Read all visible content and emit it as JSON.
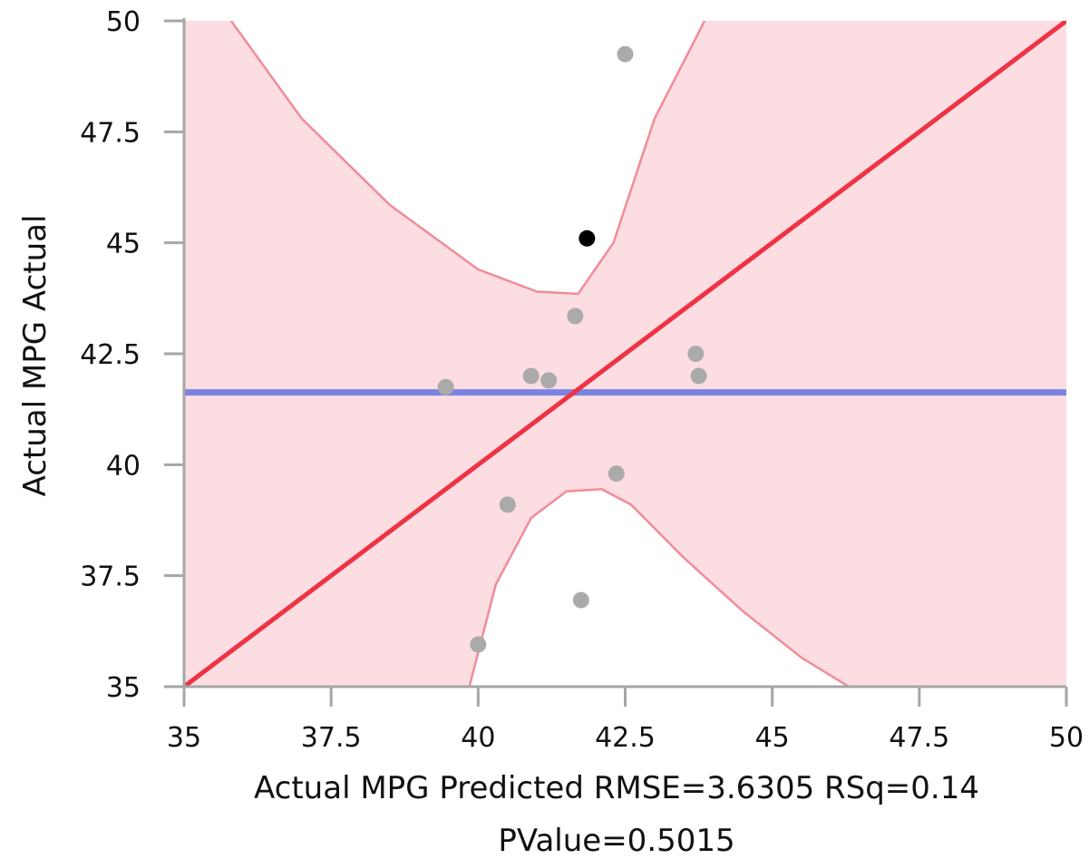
{
  "chart_data": {
    "type": "scatter",
    "title": "",
    "xlabel": "Actual MPG Predicted RMSE=3.6305 RSq=0.14",
    "xlabel_line2": "PValue=0.5015",
    "ylabel": "Actual MPG Actual",
    "xlim": [
      35,
      50
    ],
    "ylim": [
      35,
      50
    ],
    "xticks": [
      "35",
      "37.5",
      "40",
      "42.5",
      "45",
      "47.5",
      "50"
    ],
    "yticks": [
      "35",
      "37.5",
      "40",
      "42.5",
      "45",
      "47.5",
      "50"
    ],
    "grid": false,
    "points": [
      {
        "x": 39.45,
        "y": 41.75,
        "color": "#aaaaaa"
      },
      {
        "x": 40.0,
        "y": 35.95,
        "color": "#aaaaaa"
      },
      {
        "x": 40.5,
        "y": 39.1,
        "color": "#aaaaaa"
      },
      {
        "x": 40.9,
        "y": 42.0,
        "color": "#aaaaaa"
      },
      {
        "x": 41.2,
        "y": 41.9,
        "color": "#aaaaaa"
      },
      {
        "x": 41.65,
        "y": 43.35,
        "color": "#aaaaaa"
      },
      {
        "x": 41.75,
        "y": 36.95,
        "color": "#aaaaaa"
      },
      {
        "x": 41.85,
        "y": 45.1,
        "color": "#000000"
      },
      {
        "x": 42.35,
        "y": 39.8,
        "color": "#aaaaaa"
      },
      {
        "x": 42.5,
        "y": 49.25,
        "color": "#aaaaaa"
      },
      {
        "x": 43.7,
        "y": 42.5,
        "color": "#aaaaaa"
      },
      {
        "x": 43.75,
        "y": 42.0,
        "color": "#aaaaaa"
      }
    ],
    "mean_line": {
      "y": 41.63,
      "color": "#7b83e0"
    },
    "fit_line": {
      "x": [
        35,
        50
      ],
      "y": [
        35,
        50
      ],
      "color": "#ee3344"
    },
    "confidence_curves": {
      "color": "#f08c97",
      "fill": "#fcdde2",
      "upper": {
        "x": [
          35.8,
          37.0,
          38.5,
          40.0,
          41.0,
          41.7,
          42.3,
          43.0,
          43.85
        ],
        "y": [
          50.0,
          47.8,
          45.85,
          44.4,
          43.9,
          43.85,
          45.0,
          47.8,
          50.0
        ]
      },
      "lower": {
        "x": [
          39.85,
          40.3,
          40.9,
          41.5,
          42.1,
          42.6,
          43.5,
          44.5,
          45.5,
          46.3
        ],
        "y": [
          35.0,
          37.3,
          38.8,
          39.4,
          39.45,
          39.1,
          37.9,
          36.7,
          35.65,
          35.0
        ]
      }
    }
  }
}
